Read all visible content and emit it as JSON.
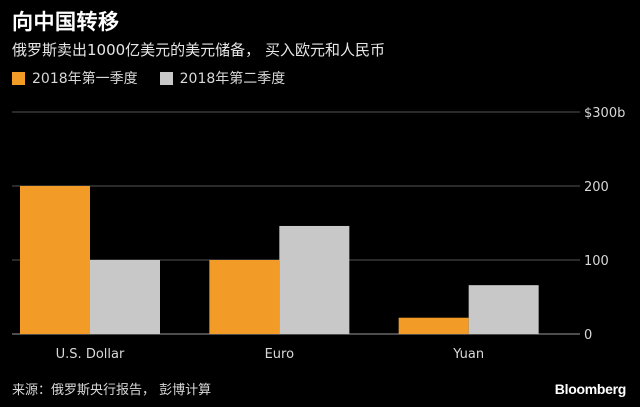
{
  "title": "向中国转移",
  "subtitle": "俄罗斯卖出1000亿美元的美元储备， 买入欧元和人民币",
  "source": "来源：俄罗斯央行报告， 彭博计算",
  "brand": "Bloomberg",
  "colors": {
    "series1": "#f29b27",
    "series2": "#c8c8c8",
    "background": "#000000",
    "grid": "#555555",
    "text": "#d8d8d8"
  },
  "chart_data": {
    "type": "bar",
    "categories": [
      "U.S. Dollar",
      "Euro",
      "Yuan"
    ],
    "series": [
      {
        "name": "2018年第一季度",
        "values": [
          200,
          100,
          22
        ]
      },
      {
        "name": "2018年第二季度",
        "values": [
          100,
          146,
          66
        ]
      }
    ],
    "yticks": [
      0,
      100,
      200,
      300
    ],
    "ytick_labels": [
      "0",
      "100",
      "200",
      "$300b"
    ],
    "ylim": [
      0,
      300
    ],
    "grid": true,
    "legend": "top-left",
    "y_axis_side": "right"
  }
}
